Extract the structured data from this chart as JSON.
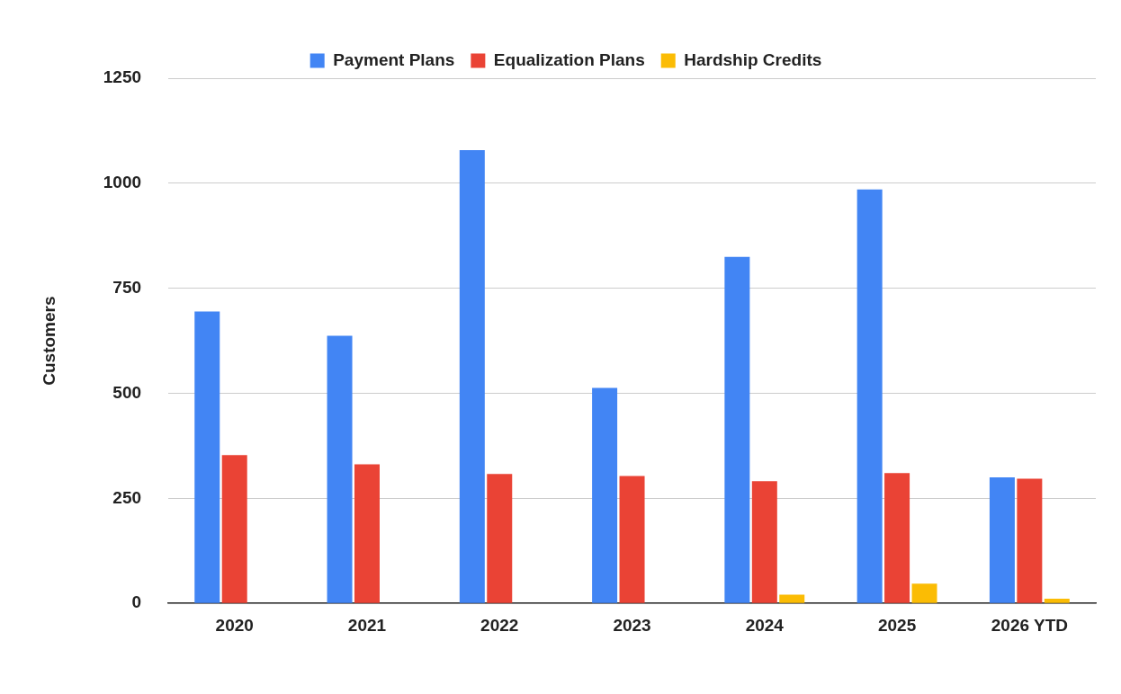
{
  "chart_data": {
    "type": "bar",
    "ylabel": "Customers",
    "categories": [
      "2020",
      "2021",
      "2022",
      "2023",
      "2024",
      "2025",
      "2026 YTD"
    ],
    "series": [
      {
        "name": "Payment Plans",
        "color": "#4285f4",
        "values": [
          695,
          637,
          1079,
          513,
          825,
          985,
          300
        ]
      },
      {
        "name": "Equalization Plans",
        "color": "#ea4335",
        "values": [
          353,
          331,
          308,
          303,
          291,
          310,
          297
        ]
      },
      {
        "name": "Hardship Credits",
        "color": "#fbbc04",
        "values": [
          0,
          0,
          0,
          0,
          21,
          47,
          11
        ]
      }
    ],
    "ylim": [
      0,
      1250
    ],
    "yticks": [
      0,
      250,
      500,
      750,
      1000,
      1250
    ],
    "grid": "y",
    "legend": "top"
  }
}
